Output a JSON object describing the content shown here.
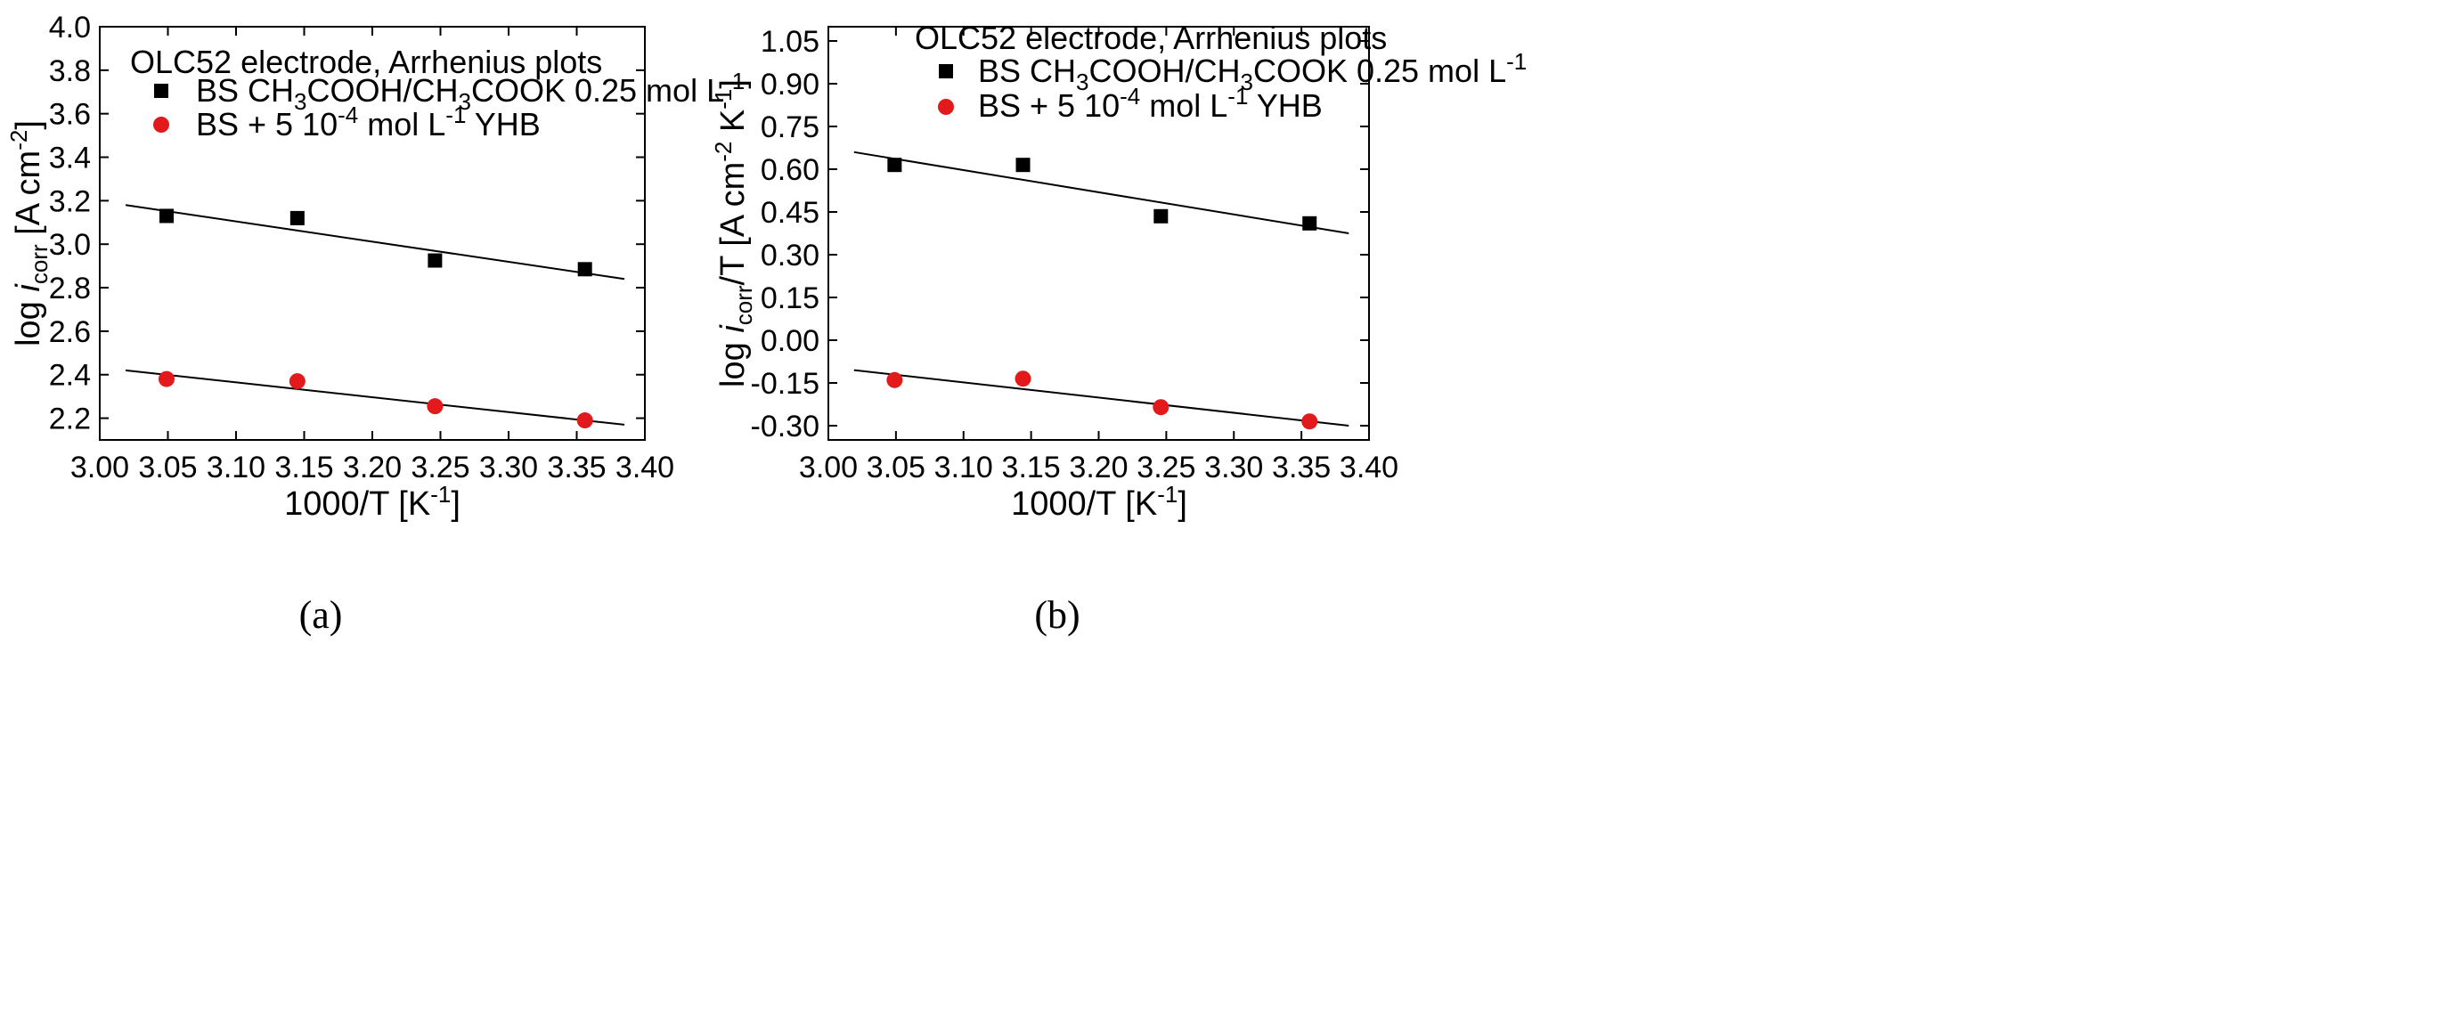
{
  "chart_data": [
    {
      "type": "scatter",
      "panel_caption": "(a)",
      "annotation": "OLC52 electrode, Arrhenius plots",
      "xlabel": "1000/T [K⁻¹]",
      "ylabel": "log icorr [A cm⁻²]",
      "xlim": [
        3.0,
        3.4
      ],
      "ylim": [
        2.1,
        4.0
      ],
      "xticks": [
        "3.00",
        "3.05",
        "3.10",
        "3.15",
        "3.20",
        "3.25",
        "3.30",
        "3.35",
        "3.40"
      ],
      "yticks": [
        "2.2",
        "2.4",
        "2.6",
        "2.8",
        "3.0",
        "3.2",
        "3.4",
        "3.6",
        "3.8",
        "4.0"
      ],
      "legend_position": "top-left",
      "series": [
        {
          "name": "BS CH3COOH/CH3COOK 0.25 mol L⁻¹",
          "marker": "square",
          "color": "#000000",
          "x": [
            3.049,
            3.145,
            3.246,
            3.356
          ],
          "y": [
            3.13,
            3.12,
            2.925,
            2.885
          ],
          "fit": {
            "x": [
              3.019,
              3.385
            ],
            "y": [
              3.18,
              2.84
            ]
          }
        },
        {
          "name": "BS + 5 10⁻⁴ mol L⁻¹ YHB",
          "marker": "circle",
          "color": "#e31a1c",
          "x": [
            3.049,
            3.145,
            3.246,
            3.356
          ],
          "y": [
            2.38,
            2.37,
            2.255,
            2.19
          ],
          "fit": {
            "x": [
              3.019,
              3.385
            ],
            "y": [
              2.42,
              2.17
            ]
          }
        }
      ]
    },
    {
      "type": "scatter",
      "panel_caption": "(b)",
      "annotation": "OLC52 electrode, Arrhenius plots",
      "xlabel": "1000/T [K⁻¹]",
      "ylabel": "log icorr/T [A cm⁻² K⁻¹]",
      "xlim": [
        3.0,
        3.4
      ],
      "ylim": [
        -0.35,
        1.1
      ],
      "xticks": [
        "3.00",
        "3.05",
        "3.10",
        "3.15",
        "3.20",
        "3.25",
        "3.30",
        "3.35",
        "3.40"
      ],
      "yticks": [
        "-0.30",
        "-0.15",
        "0.00",
        "0.15",
        "0.30",
        "0.45",
        "0.60",
        "0.75",
        "0.90",
        "1.05"
      ],
      "legend_position": "top-left",
      "series": [
        {
          "name": "BS CH3COOH/CH3COOK 0.25 mol L⁻¹",
          "marker": "square",
          "color": "#000000",
          "x": [
            3.049,
            3.144,
            3.246,
            3.356
          ],
          "y": [
            0.615,
            0.615,
            0.435,
            0.41
          ],
          "fit": {
            "x": [
              3.019,
              3.385
            ],
            "y": [
              0.66,
              0.375
            ]
          }
        },
        {
          "name": "BS + 5 10⁻⁴ mol L⁻¹ YHB",
          "marker": "circle",
          "color": "#e31a1c",
          "x": [
            3.049,
            3.144,
            3.246,
            3.356
          ],
          "y": [
            -0.14,
            -0.135,
            -0.235,
            -0.285
          ],
          "fit": {
            "x": [
              3.019,
              3.385
            ],
            "y": [
              -0.105,
              -0.3
            ]
          }
        }
      ]
    }
  ]
}
